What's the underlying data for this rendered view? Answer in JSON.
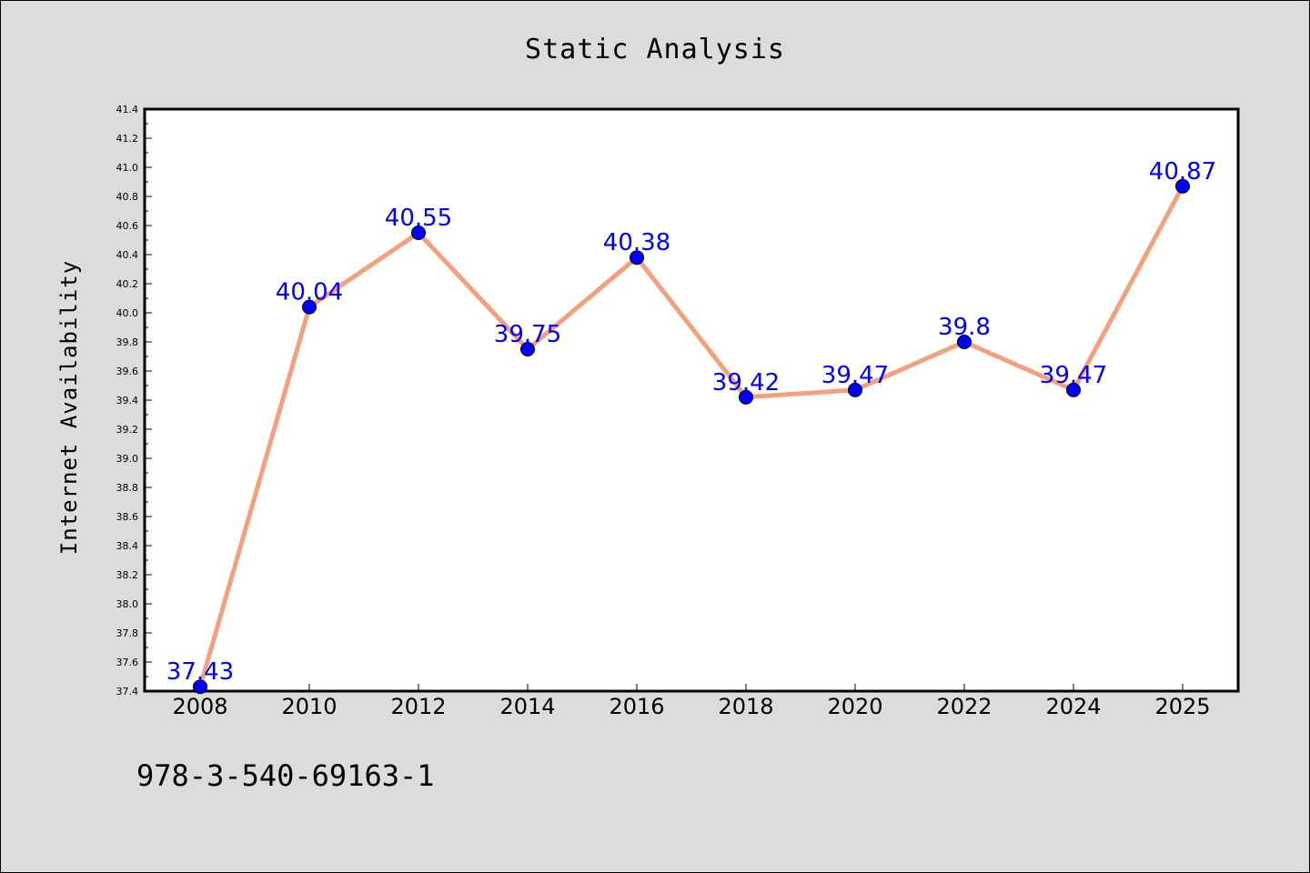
{
  "chart_data": {
    "type": "line",
    "title": "Static Analysis",
    "ylabel": "Internet Availability",
    "xlabel": "",
    "categories": [
      "2008",
      "2010",
      "2012",
      "2014",
      "2016",
      "2018",
      "2020",
      "2022",
      "2024",
      "2025"
    ],
    "series": [
      {
        "values": [
          37.43,
          40.04,
          40.55,
          39.75,
          40.38,
          39.42,
          39.47,
          39.8,
          39.47,
          40.87
        ],
        "labels": [
          "37.43",
          "40.04",
          "40.55",
          "39.75",
          "40.38",
          "39.42",
          "39.47",
          "39.8",
          "39.47",
          "40.87"
        ],
        "line_color": "#f4a07f",
        "marker_color": "#0000ff"
      }
    ],
    "ylim": [
      37.4,
      41.4
    ],
    "yticks": [
      "37.4",
      "37.6",
      "37.8",
      "38.0",
      "38.2",
      "38.4",
      "38.6",
      "38.8",
      "39.0",
      "39.2",
      "39.4",
      "39.6",
      "39.8",
      "40.0",
      "40.2",
      "40.4",
      "40.6",
      "40.8",
      "41.0",
      "41.2",
      "41.4"
    ],
    "grid": false,
    "legend": "none",
    "background": "#dcdcdc",
    "plot_background": "#ffffff",
    "label_color": "#0000ff"
  },
  "footnote": "978-3-540-69163-1"
}
